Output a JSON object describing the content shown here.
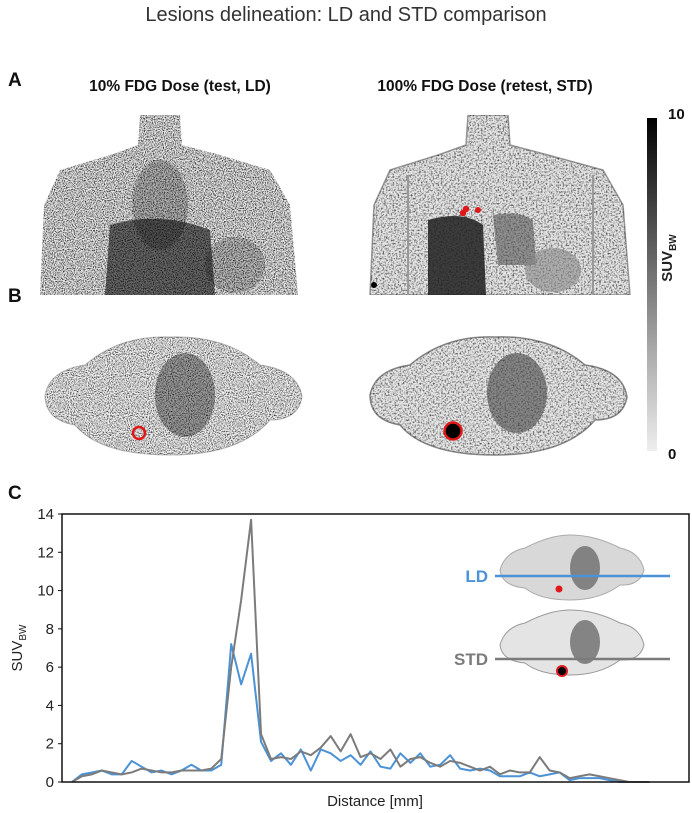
{
  "figure": {
    "title": "Lesions delineation: LD and STD comparison",
    "panel_a": {
      "letter": "A",
      "left_title": "10% FDG Dose (test, LD)",
      "right_title": "100% FDG Dose (retest, STD)"
    },
    "panel_b": {
      "letter": "B"
    },
    "panel_c": {
      "letter": "C"
    },
    "colorbar": {
      "max_label": "10",
      "min_label": "0",
      "unit_main": "SUV",
      "unit_sub": "BW"
    },
    "colors": {
      "ld": "#4b92d6",
      "std": "#7b7b7b",
      "lesion": "#e01818"
    }
  },
  "chart_data": {
    "type": "line",
    "title": "",
    "xlabel": "Distance [mm]",
    "ylabel_main": "SUV",
    "ylabel_sub": "BW",
    "ylim": [
      0,
      14
    ],
    "yticks": [
      "0",
      "2",
      "4",
      "6",
      "8",
      "10",
      "12",
      "14"
    ],
    "xlim": [
      0,
      63
    ],
    "x": [
      1,
      2,
      3,
      4,
      5,
      6,
      7,
      8,
      9,
      10,
      11,
      12,
      13,
      14,
      15,
      16,
      17,
      18,
      19,
      20,
      21,
      22,
      23,
      24,
      25,
      26,
      27,
      28,
      29,
      30,
      31,
      32,
      33,
      34,
      35,
      36,
      37,
      38,
      39,
      40,
      41,
      42,
      43,
      44,
      45,
      46,
      47,
      48,
      49,
      50,
      51,
      52,
      53,
      54,
      55,
      56,
      57,
      58,
      59
    ],
    "series": [
      {
        "name": "LD",
        "legend_label": "LD",
        "color": "#4b92d6",
        "values": [
          0.0,
          0.4,
          0.5,
          0.6,
          0.4,
          0.4,
          1.1,
          0.8,
          0.5,
          0.6,
          0.4,
          0.6,
          0.9,
          0.6,
          0.6,
          0.9,
          7.2,
          5.1,
          6.7,
          2.1,
          1.1,
          1.5,
          0.9,
          1.7,
          0.6,
          1.7,
          1.5,
          1.1,
          1.4,
          0.9,
          1.6,
          0.8,
          0.7,
          1.5,
          1.0,
          1.5,
          0.8,
          0.9,
          1.4,
          0.7,
          0.6,
          0.7,
          0.6,
          0.3,
          0.3,
          0.3,
          0.5,
          0.3,
          0.4,
          0.5,
          0.1,
          0.2,
          0.2,
          0.2,
          0.1,
          0.0,
          0.0,
          0.0,
          0.0
        ]
      },
      {
        "name": "STD",
        "legend_label": "STD",
        "color": "#7b7b7b",
        "values": [
          0.0,
          0.3,
          0.4,
          0.6,
          0.5,
          0.4,
          0.5,
          0.7,
          0.6,
          0.5,
          0.5,
          0.6,
          0.6,
          0.6,
          0.7,
          1.2,
          6.0,
          9.5,
          13.7,
          2.5,
          1.2,
          1.3,
          1.2,
          1.6,
          1.4,
          1.8,
          2.4,
          1.6,
          2.5,
          1.3,
          1.5,
          1.2,
          1.7,
          0.8,
          1.2,
          1.3,
          1.0,
          0.8,
          1.1,
          1.0,
          0.8,
          0.6,
          0.8,
          0.4,
          0.6,
          0.5,
          0.5,
          1.3,
          0.6,
          0.5,
          0.2,
          0.3,
          0.4,
          0.3,
          0.2,
          0.1,
          0.0,
          0.0,
          0.0
        ]
      }
    ]
  }
}
